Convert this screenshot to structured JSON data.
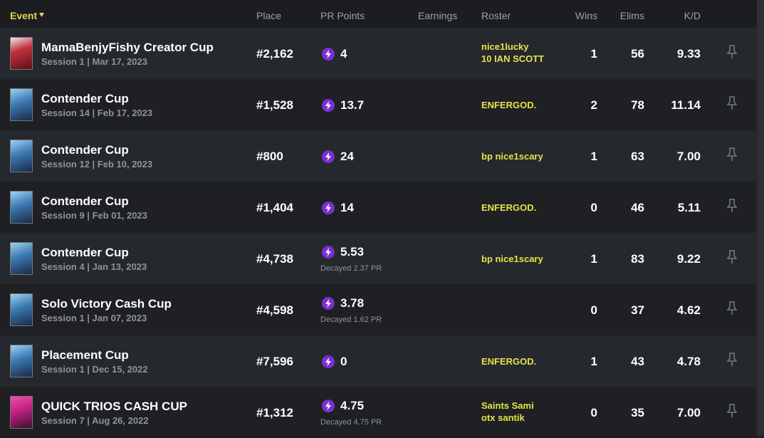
{
  "header": {
    "columns": [
      "Event",
      "Place",
      "PR Points",
      "Earnings",
      "Roster",
      "Wins",
      "Elims",
      "K/D"
    ]
  },
  "rows": [
    {
      "event": "MamaBenjyFishy Creator Cup",
      "session": "Session 1 | Mar 17, 2023",
      "place": "#2,162",
      "pr_points": "4",
      "roster": [
        "nice1lucky",
        "10 IAN SCOTT"
      ],
      "wins": "1",
      "elims": "56",
      "kd": "9.33"
    },
    {
      "event": "Contender Cup",
      "session": "Session 14 | Feb 17, 2023",
      "place": "#1,528",
      "pr_points": "13.7",
      "roster": [
        "ENFERGOD."
      ],
      "wins": "2",
      "elims": "78",
      "kd": "11.14"
    },
    {
      "event": "Contender Cup",
      "session": "Session 12 | Feb 10, 2023",
      "place": "#800",
      "pr_points": "24",
      "roster": [
        "bp nice1scary"
      ],
      "wins": "1",
      "elims": "63",
      "kd": "7.00"
    },
    {
      "event": "Contender Cup",
      "session": "Session 9 | Feb 01, 2023",
      "place": "#1,404",
      "pr_points": "14",
      "roster": [
        "ENFERGOD."
      ],
      "wins": "0",
      "elims": "46",
      "kd": "5.11"
    },
    {
      "event": "Contender Cup",
      "session": "Session 4 | Jan 13, 2023",
      "place": "#4,738",
      "pr_points": "5.53",
      "decayed": "Decayed 2.37 PR",
      "roster": [
        "bp nice1scary"
      ],
      "wins": "1",
      "elims": "83",
      "kd": "9.22"
    },
    {
      "event": "Solo Victory Cash Cup",
      "session": "Session 1 | Jan 07, 2023",
      "place": "#4,598",
      "pr_points": "3.78",
      "decayed": "Decayed 1.62 PR",
      "roster": [],
      "wins": "0",
      "elims": "37",
      "kd": "4.62"
    },
    {
      "event": "Placement Cup",
      "session": "Session 1 | Dec 15, 2022",
      "place": "#7,596",
      "pr_points": "0",
      "roster": [
        "ENFERGOD."
      ],
      "wins": "1",
      "elims": "43",
      "kd": "4.78"
    },
    {
      "event": "QUICK TRIOS CASH CUP",
      "session": "Session 7 | Aug 26, 2022",
      "place": "#1,312",
      "pr_points": "4.75",
      "decayed": "Decayed 4.75 PR",
      "roster": [
        "Saints Sami",
        "otx santik"
      ],
      "wins": "0",
      "elims": "35",
      "kd": "7.00"
    }
  ]
}
